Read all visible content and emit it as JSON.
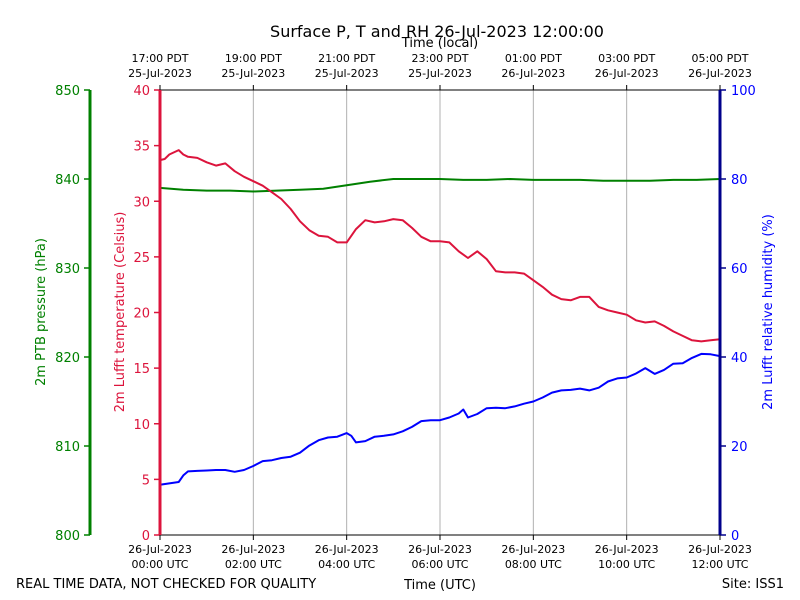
{
  "chart_data": {
    "type": "line",
    "title": "Surface P, T and RH 26-Jul-2023 12:00:00",
    "xlabel_bottom": "Time (UTC)",
    "xlabel_top": "Time (local)",
    "footer_left": "REAL TIME DATA, NOT CHECKED FOR QUALITY",
    "footer_right": "Site: ISS1",
    "x_range_utc_hours": [
      0,
      12
    ],
    "grid": "vertical",
    "bottom_ticks": [
      {
        "h": 0,
        "line1": "26-Jul-2023",
        "line2": "00:00 UTC"
      },
      {
        "h": 2,
        "line1": "26-Jul-2023",
        "line2": "02:00 UTC"
      },
      {
        "h": 4,
        "line1": "26-Jul-2023",
        "line2": "04:00 UTC"
      },
      {
        "h": 6,
        "line1": "26-Jul-2023",
        "line2": "06:00 UTC"
      },
      {
        "h": 8,
        "line1": "26-Jul-2023",
        "line2": "08:00 UTC"
      },
      {
        "h": 10,
        "line1": "26-Jul-2023",
        "line2": "10:00 UTC"
      },
      {
        "h": 12,
        "line1": "26-Jul-2023",
        "line2": "12:00 UTC"
      }
    ],
    "top_ticks": [
      {
        "h": 0,
        "line1": "17:00 PDT",
        "line2": "25-Jul-2023"
      },
      {
        "h": 2,
        "line1": "19:00 PDT",
        "line2": "25-Jul-2023"
      },
      {
        "h": 4,
        "line1": "21:00 PDT",
        "line2": "25-Jul-2023"
      },
      {
        "h": 6,
        "line1": "23:00 PDT",
        "line2": "25-Jul-2023"
      },
      {
        "h": 8,
        "line1": "01:00 PDT",
        "line2": "26-Jul-2023"
      },
      {
        "h": 10,
        "line1": "03:00 PDT",
        "line2": "26-Jul-2023"
      },
      {
        "h": 12,
        "line1": "05:00 PDT",
        "line2": "26-Jul-2023"
      }
    ],
    "axes": {
      "pressure": {
        "label": "2m PTB pressure (hPa)",
        "range": [
          800,
          850
        ],
        "ticks": [
          800,
          810,
          820,
          830,
          840,
          850
        ],
        "color": "#008000"
      },
      "temperature": {
        "label": "2m Lufft temperature (Celsius)",
        "range": [
          0,
          40
        ],
        "ticks": [
          0,
          5,
          10,
          15,
          20,
          25,
          30,
          35,
          40
        ],
        "color": "#dc143c"
      },
      "humidity": {
        "label": "2m Lufft relative humidity (%)",
        "range": [
          0,
          100
        ],
        "ticks": [
          0,
          20,
          40,
          60,
          80,
          100
        ],
        "color": "#0000ff"
      }
    },
    "series": [
      {
        "name": "2m PTB pressure (hPa)",
        "axis": "pressure",
        "color": "#008000",
        "x": [
          0,
          0.5,
          1,
          1.5,
          2,
          2.5,
          3,
          3.5,
          4,
          4.5,
          5,
          5.5,
          6,
          6.5,
          7,
          7.5,
          8,
          8.5,
          9,
          9.5,
          10,
          10.5,
          11,
          11.5,
          12
        ],
        "values": [
          839.0,
          838.8,
          838.7,
          838.7,
          838.6,
          838.7,
          838.8,
          838.9,
          839.3,
          839.7,
          840.0,
          840.0,
          840.0,
          839.9,
          839.9,
          840.0,
          839.9,
          839.9,
          839.9,
          839.8,
          839.8,
          839.8,
          839.9,
          839.9,
          840.0
        ]
      },
      {
        "name": "2m Lufft temperature (Celsius)",
        "axis": "temperature",
        "color": "#dc143c",
        "x": [
          0,
          0.1,
          0.2,
          0.4,
          0.5,
          0.6,
          0.8,
          1.0,
          1.2,
          1.4,
          1.6,
          1.8,
          2.0,
          2.2,
          2.4,
          2.6,
          2.8,
          3.0,
          3.2,
          3.4,
          3.6,
          3.8,
          4.0,
          4.2,
          4.4,
          4.6,
          4.8,
          5.0,
          5.2,
          5.4,
          5.6,
          5.8,
          6.0,
          6.2,
          6.4,
          6.6,
          6.8,
          7.0,
          7.2,
          7.4,
          7.6,
          7.8,
          8.0,
          8.2,
          8.4,
          8.6,
          8.8,
          9.0,
          9.2,
          9.4,
          9.6,
          9.8,
          10.0,
          10.2,
          10.4,
          10.6,
          10.8,
          11.0,
          11.2,
          11.4,
          11.6,
          11.8,
          12.0
        ],
        "values": [
          33.7,
          33.8,
          34.2,
          34.6,
          34.2,
          34.0,
          33.9,
          33.5,
          33.2,
          33.4,
          32.7,
          32.2,
          31.8,
          31.4,
          30.8,
          30.2,
          29.3,
          28.2,
          27.4,
          26.9,
          26.8,
          26.3,
          26.3,
          27.5,
          28.3,
          28.1,
          28.2,
          28.4,
          28.3,
          27.6,
          26.8,
          26.4,
          26.4,
          26.3,
          25.5,
          24.9,
          25.5,
          24.8,
          23.7,
          23.6,
          23.6,
          23.5,
          22.9,
          22.3,
          21.6,
          21.2,
          21.1,
          21.4,
          21.4,
          20.5,
          20.2,
          20.0,
          19.8,
          19.3,
          19.1,
          19.2,
          18.8,
          18.3,
          17.9,
          17.5,
          17.4,
          17.5,
          17.6
        ]
      },
      {
        "name": "2m Lufft relative humidity (%)",
        "axis": "humidity",
        "color": "#0000ff",
        "x": [
          0,
          0.2,
          0.4,
          0.5,
          0.6,
          0.8,
          1.0,
          1.2,
          1.4,
          1.6,
          1.8,
          2.0,
          2.2,
          2.4,
          2.6,
          2.8,
          3.0,
          3.2,
          3.4,
          3.6,
          3.8,
          4.0,
          4.1,
          4.2,
          4.4,
          4.6,
          4.8,
          5.0,
          5.2,
          5.4,
          5.6,
          5.8,
          6.0,
          6.2,
          6.4,
          6.5,
          6.6,
          6.8,
          7.0,
          7.2,
          7.4,
          7.6,
          7.8,
          8.0,
          8.2,
          8.4,
          8.6,
          8.8,
          9.0,
          9.2,
          9.4,
          9.6,
          9.8,
          10.0,
          10.2,
          10.4,
          10.6,
          10.8,
          11.0,
          11.2,
          11.4,
          11.6,
          11.8,
          12.0
        ],
        "values": [
          11.3,
          11.6,
          11.9,
          13.4,
          14.3,
          14.4,
          14.5,
          14.6,
          14.6,
          14.2,
          14.6,
          15.5,
          16.6,
          16.8,
          17.3,
          17.6,
          18.5,
          20.1,
          21.3,
          21.9,
          22.1,
          22.9,
          22.3,
          20.8,
          21.1,
          22.1,
          22.3,
          22.6,
          23.3,
          24.3,
          25.6,
          25.8,
          25.8,
          26.4,
          27.3,
          28.2,
          26.4,
          27.2,
          28.5,
          28.6,
          28.5,
          28.9,
          29.5,
          30.0,
          30.9,
          32.0,
          32.5,
          32.6,
          32.9,
          32.5,
          33.1,
          34.5,
          35.2,
          35.4,
          36.3,
          37.5,
          36.2,
          37.1,
          38.5,
          38.6,
          39.8,
          40.7,
          40.6,
          40.2
        ]
      }
    ]
  }
}
